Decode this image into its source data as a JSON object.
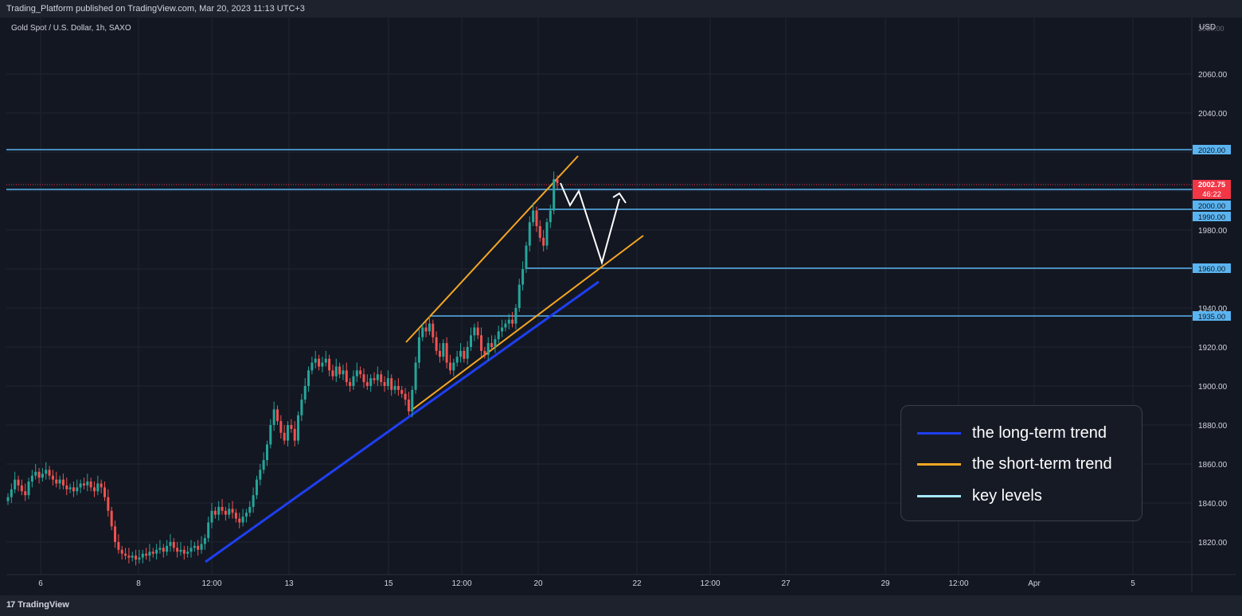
{
  "header": {
    "publish_line": "Trading_Platform published on TradingView.com, Mar 20, 2023 11:13 UTC+3"
  },
  "symbol": {
    "info": "Gold Spot / U.S. Dollar, 1h, SAXO",
    "currency": "USD"
  },
  "footer": {
    "brand_mark": "17",
    "brand_name": "TradingView"
  },
  "price_axis": {
    "ticks": [
      "2060.00",
      "2040.00",
      "1980.00",
      "1940.00",
      "1920.00",
      "1900.00",
      "1880.00",
      "1860.00",
      "1840.00",
      "1820.00"
    ],
    "partial_top": "2080.00"
  },
  "time_axis": {
    "labels": [
      "6",
      "8",
      "12:00",
      "13",
      "15",
      "12:00",
      "20",
      "22",
      "12:00",
      "27",
      "29",
      "12:00",
      "Apr",
      "5"
    ]
  },
  "key_levels": [
    {
      "value": 2020,
      "label": "2020.00"
    },
    {
      "value": 2000,
      "label": "2000.00"
    },
    {
      "value": 1990,
      "label": "1990.00"
    },
    {
      "value": 1960,
      "label": "1960.00"
    },
    {
      "value": 1935,
      "label": "1935.00"
    }
  ],
  "current_price": {
    "value": 2002.75,
    "label": "2002.75",
    "countdown": "46:22"
  },
  "legend": {
    "items": [
      {
        "label": "the long-term trend",
        "color": "#1e3ff0"
      },
      {
        "label": "the short-term trend",
        "color": "#f5a623"
      },
      {
        "label": "key levels",
        "color": "#a6e8ff"
      }
    ]
  },
  "colors": {
    "background": "#131722",
    "up": "#26a69a",
    "down": "#ef5350",
    "key_level": "#5ab4f0",
    "long_trend": "#1e3ff0",
    "short_trend": "#f5a623",
    "price_tag": "#f23645",
    "projection": "#ffffff"
  },
  "chart_data": {
    "type": "candlestick",
    "title": "Gold Spot / U.S. Dollar, 1h, SAXO",
    "ylim": [
      1810,
      2080
    ],
    "candles_close_path": [
      1843,
      1847,
      1852,
      1849,
      1846,
      1844,
      1851,
      1854,
      1856,
      1853,
      1855,
      1857,
      1854,
      1852,
      1850,
      1852,
      1849,
      1847,
      1848,
      1846,
      1848,
      1850,
      1849,
      1851,
      1848,
      1846,
      1850,
      1848,
      1843,
      1836,
      1828,
      1820,
      1816,
      1814,
      1813,
      1812,
      1813,
      1811,
      1812,
      1814,
      1813,
      1815,
      1814,
      1816,
      1817,
      1815,
      1818,
      1820,
      1817,
      1815,
      1816,
      1814,
      1815,
      1817,
      1818,
      1816,
      1819,
      1822,
      1830,
      1836,
      1834,
      1838,
      1836,
      1834,
      1837,
      1835,
      1832,
      1830,
      1833,
      1835,
      1838,
      1844,
      1852,
      1857,
      1862,
      1870,
      1880,
      1888,
      1882,
      1876,
      1872,
      1880,
      1878,
      1872,
      1885,
      1893,
      1900,
      1908,
      1912,
      1914,
      1910,
      1912,
      1914,
      1908,
      1905,
      1910,
      1906,
      1908,
      1902,
      1900,
      1905,
      1908,
      1906,
      1902,
      1900,
      1904,
      1903,
      1906,
      1902,
      1900,
      1904,
      1898,
      1900,
      1898,
      1896,
      1893,
      1887,
      1898,
      1912,
      1925,
      1930,
      1928,
      1932,
      1925,
      1918,
      1915,
      1922,
      1912,
      1908,
      1912,
      1915,
      1918,
      1914,
      1920,
      1926,
      1930,
      1926,
      1918,
      1916,
      1922,
      1920,
      1924,
      1928,
      1930,
      1932,
      1934,
      1932,
      1940,
      1952,
      1960,
      1972,
      1984,
      1990,
      1982,
      1976,
      1972,
      1984,
      1990,
      2006,
      2004
    ]
  }
}
